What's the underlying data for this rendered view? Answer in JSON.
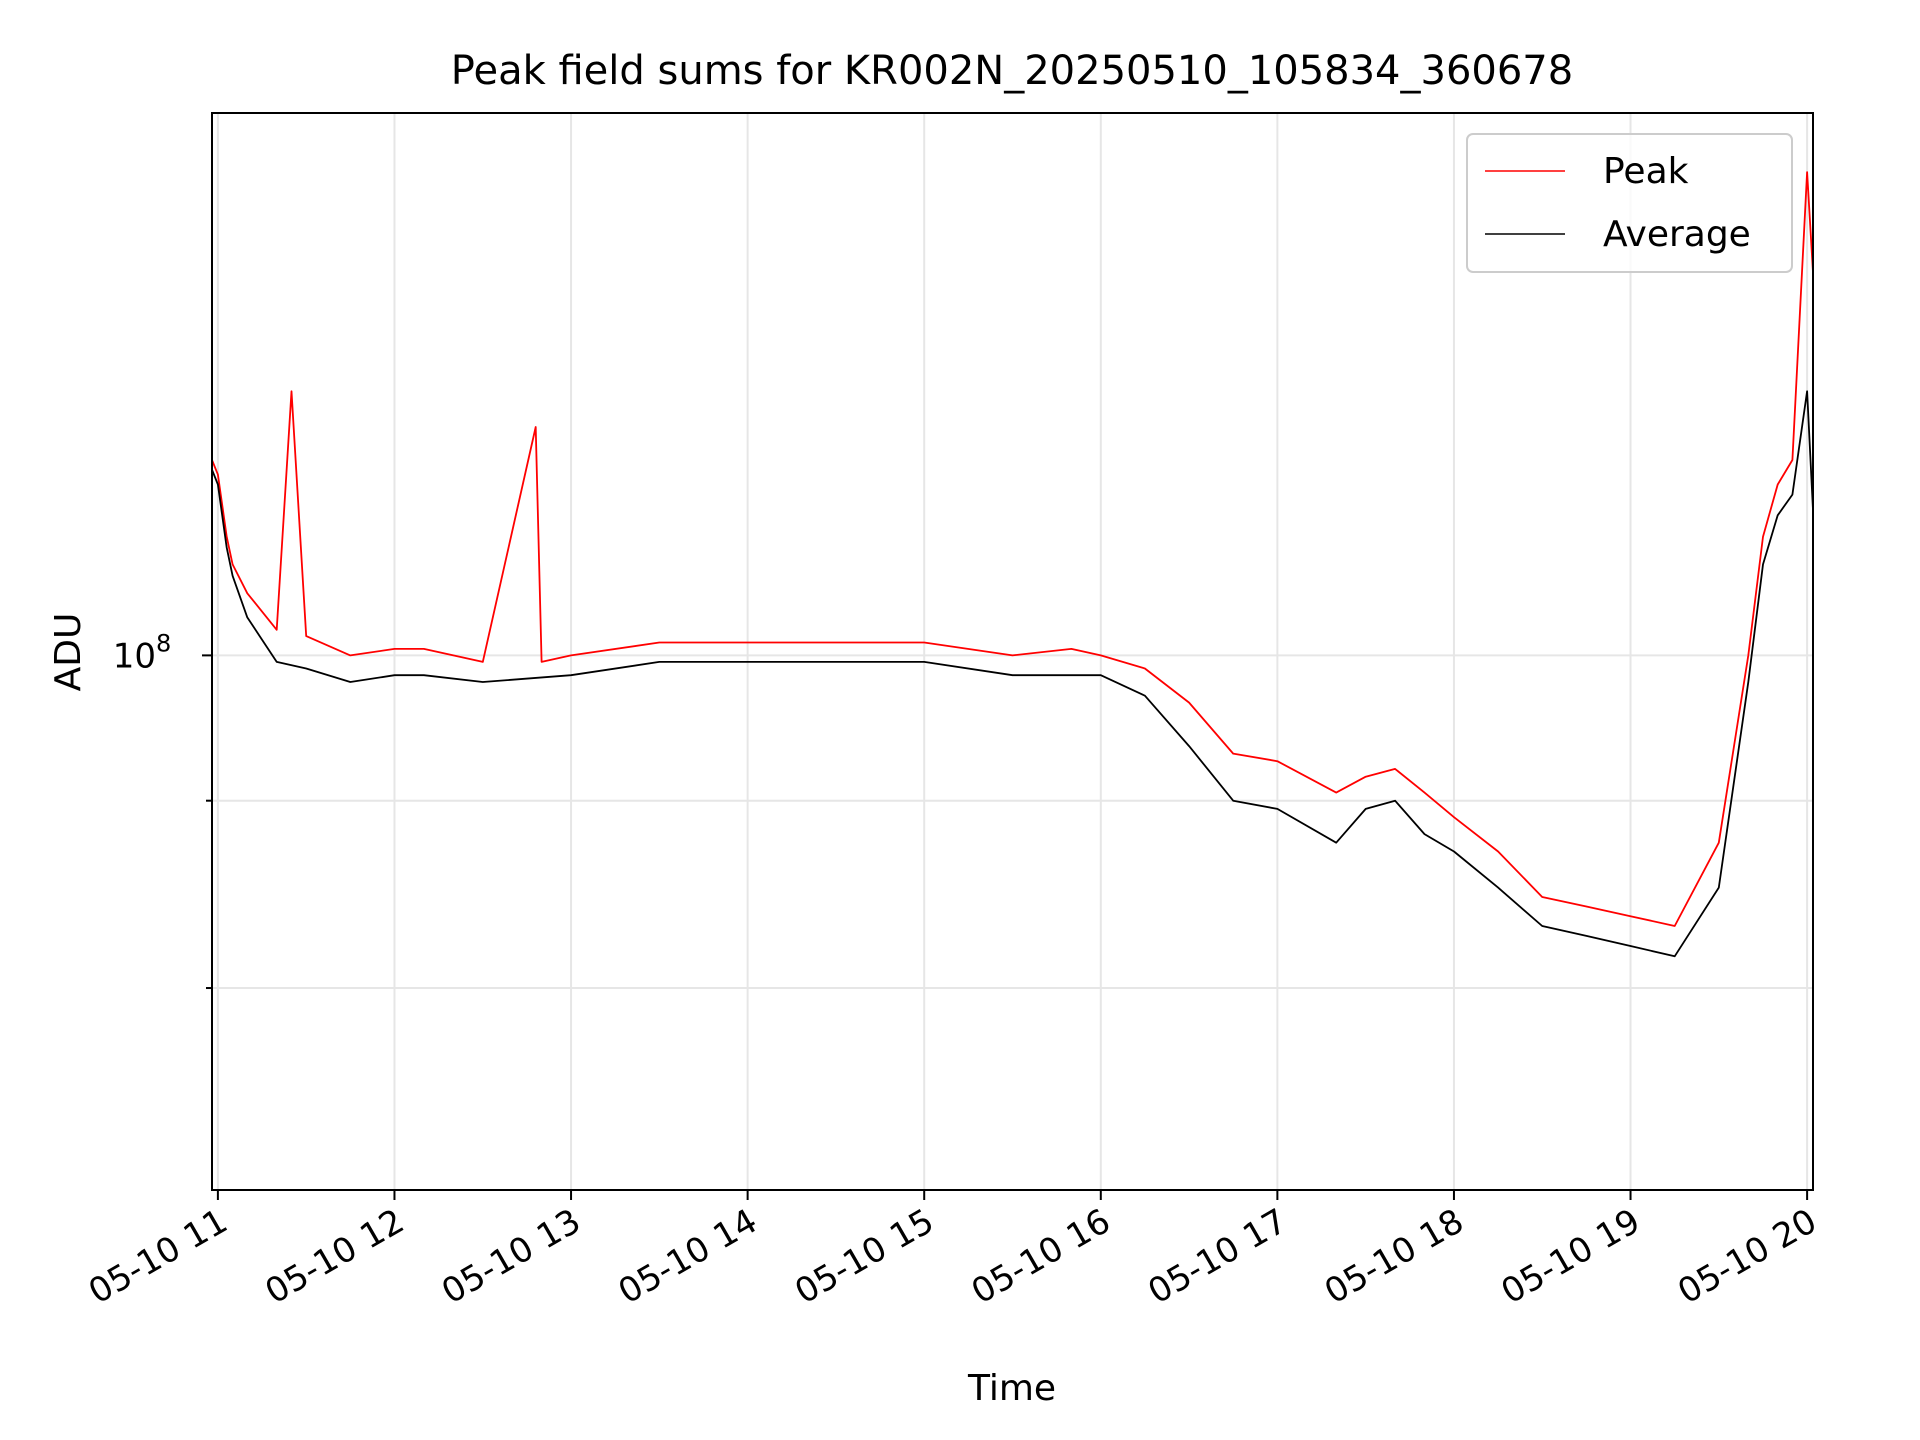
{
  "chart_data": {
    "type": "line",
    "title": "Peak field sums for KR002N_20250510_105834_360678",
    "xlabel": "Time",
    "ylabel": "ADU",
    "y_scale": "log",
    "ylim": [
      44000000,
      230000000
    ],
    "xlim": [
      "05-10 10:58",
      "05-10 20:02"
    ],
    "grid": true,
    "legend_position": "top-right",
    "x_ticks": [
      "05-10 11",
      "05-10 12",
      "05-10 13",
      "05-10 14",
      "05-10 15",
      "05-10 16",
      "05-10 17",
      "05-10 18",
      "05-10 19",
      "05-10 20"
    ],
    "y_ticks": [
      {
        "value": 100000000,
        "label_base": "10",
        "label_exp": "8"
      },
      {
        "value": 80000000,
        "label_base": "",
        "label_exp": ""
      },
      {
        "value": 60000000,
        "label_base": "",
        "label_exp": ""
      }
    ],
    "series": [
      {
        "name": "Peak",
        "color": "#ff0000",
        "x": [
          "05-10 10:58",
          "05-10 11:00",
          "05-10 11:03",
          "05-10 11:05",
          "05-10 11:10",
          "05-10 11:20",
          "05-10 11:25",
          "05-10 11:30",
          "05-10 11:45",
          "05-10 12:00",
          "05-10 12:10",
          "05-10 12:30",
          "05-10 12:48",
          "05-10 12:50",
          "05-10 13:00",
          "05-10 13:30",
          "05-10 14:00",
          "05-10 14:30",
          "05-10 15:00",
          "05-10 15:30",
          "05-10 15:50",
          "05-10 16:00",
          "05-10 16:15",
          "05-10 16:30",
          "05-10 16:45",
          "05-10 17:00",
          "05-10 17:20",
          "05-10 17:30",
          "05-10 17:40",
          "05-10 17:50",
          "05-10 18:00",
          "05-10 18:15",
          "05-10 18:30",
          "05-10 18:45",
          "05-10 19:00",
          "05-10 19:15",
          "05-10 19:30",
          "05-10 19:40",
          "05-10 19:45",
          "05-10 19:50",
          "05-10 19:55",
          "05-10 20:00",
          "05-10 20:02"
        ],
        "y": [
          135000000,
          132000000,
          120000000,
          115000000,
          110000000,
          104000000,
          150000000,
          103000000,
          100000000,
          101000000,
          101000000,
          99000000,
          142000000,
          99000000,
          100000000,
          102000000,
          102000000,
          102000000,
          102000000,
          100000000,
          101000000,
          100000000,
          98000000,
          93000000,
          86000000,
          85000000,
          81000000,
          83000000,
          84000000,
          81000000,
          78000000,
          74000000,
          69000000,
          68000000,
          67000000,
          66000000,
          75000000,
          100000000,
          120000000,
          130000000,
          135000000,
          210000000,
          180000000
        ]
      },
      {
        "name": "Average",
        "color": "#000000",
        "x": [
          "05-10 10:58",
          "05-10 11:00",
          "05-10 11:03",
          "05-10 11:05",
          "05-10 11:10",
          "05-10 11:20",
          "05-10 11:30",
          "05-10 11:45",
          "05-10 12:00",
          "05-10 12:10",
          "05-10 12:30",
          "05-10 13:00",
          "05-10 13:30",
          "05-10 14:00",
          "05-10 14:30",
          "05-10 15:00",
          "05-10 15:30",
          "05-10 16:00",
          "05-10 16:15",
          "05-10 16:30",
          "05-10 16:45",
          "05-10 17:00",
          "05-10 17:20",
          "05-10 17:30",
          "05-10 17:40",
          "05-10 17:50",
          "05-10 18:00",
          "05-10 18:15",
          "05-10 18:30",
          "05-10 18:45",
          "05-10 19:00",
          "05-10 19:15",
          "05-10 19:30",
          "05-10 19:40",
          "05-10 19:45",
          "05-10 19:50",
          "05-10 19:55",
          "05-10 20:00",
          "05-10 20:02"
        ],
        "y": [
          133000000,
          130000000,
          118000000,
          113000000,
          106000000,
          99000000,
          98000000,
          96000000,
          97000000,
          97000000,
          96000000,
          97000000,
          99000000,
          99000000,
          99000000,
          99000000,
          97000000,
          97000000,
          94000000,
          87000000,
          80000000,
          79000000,
          75000000,
          79000000,
          80000000,
          76000000,
          74000000,
          70000000,
          66000000,
          65000000,
          64000000,
          63000000,
          70000000,
          96000000,
          115000000,
          124000000,
          128000000,
          150000000,
          125000000
        ]
      }
    ]
  }
}
